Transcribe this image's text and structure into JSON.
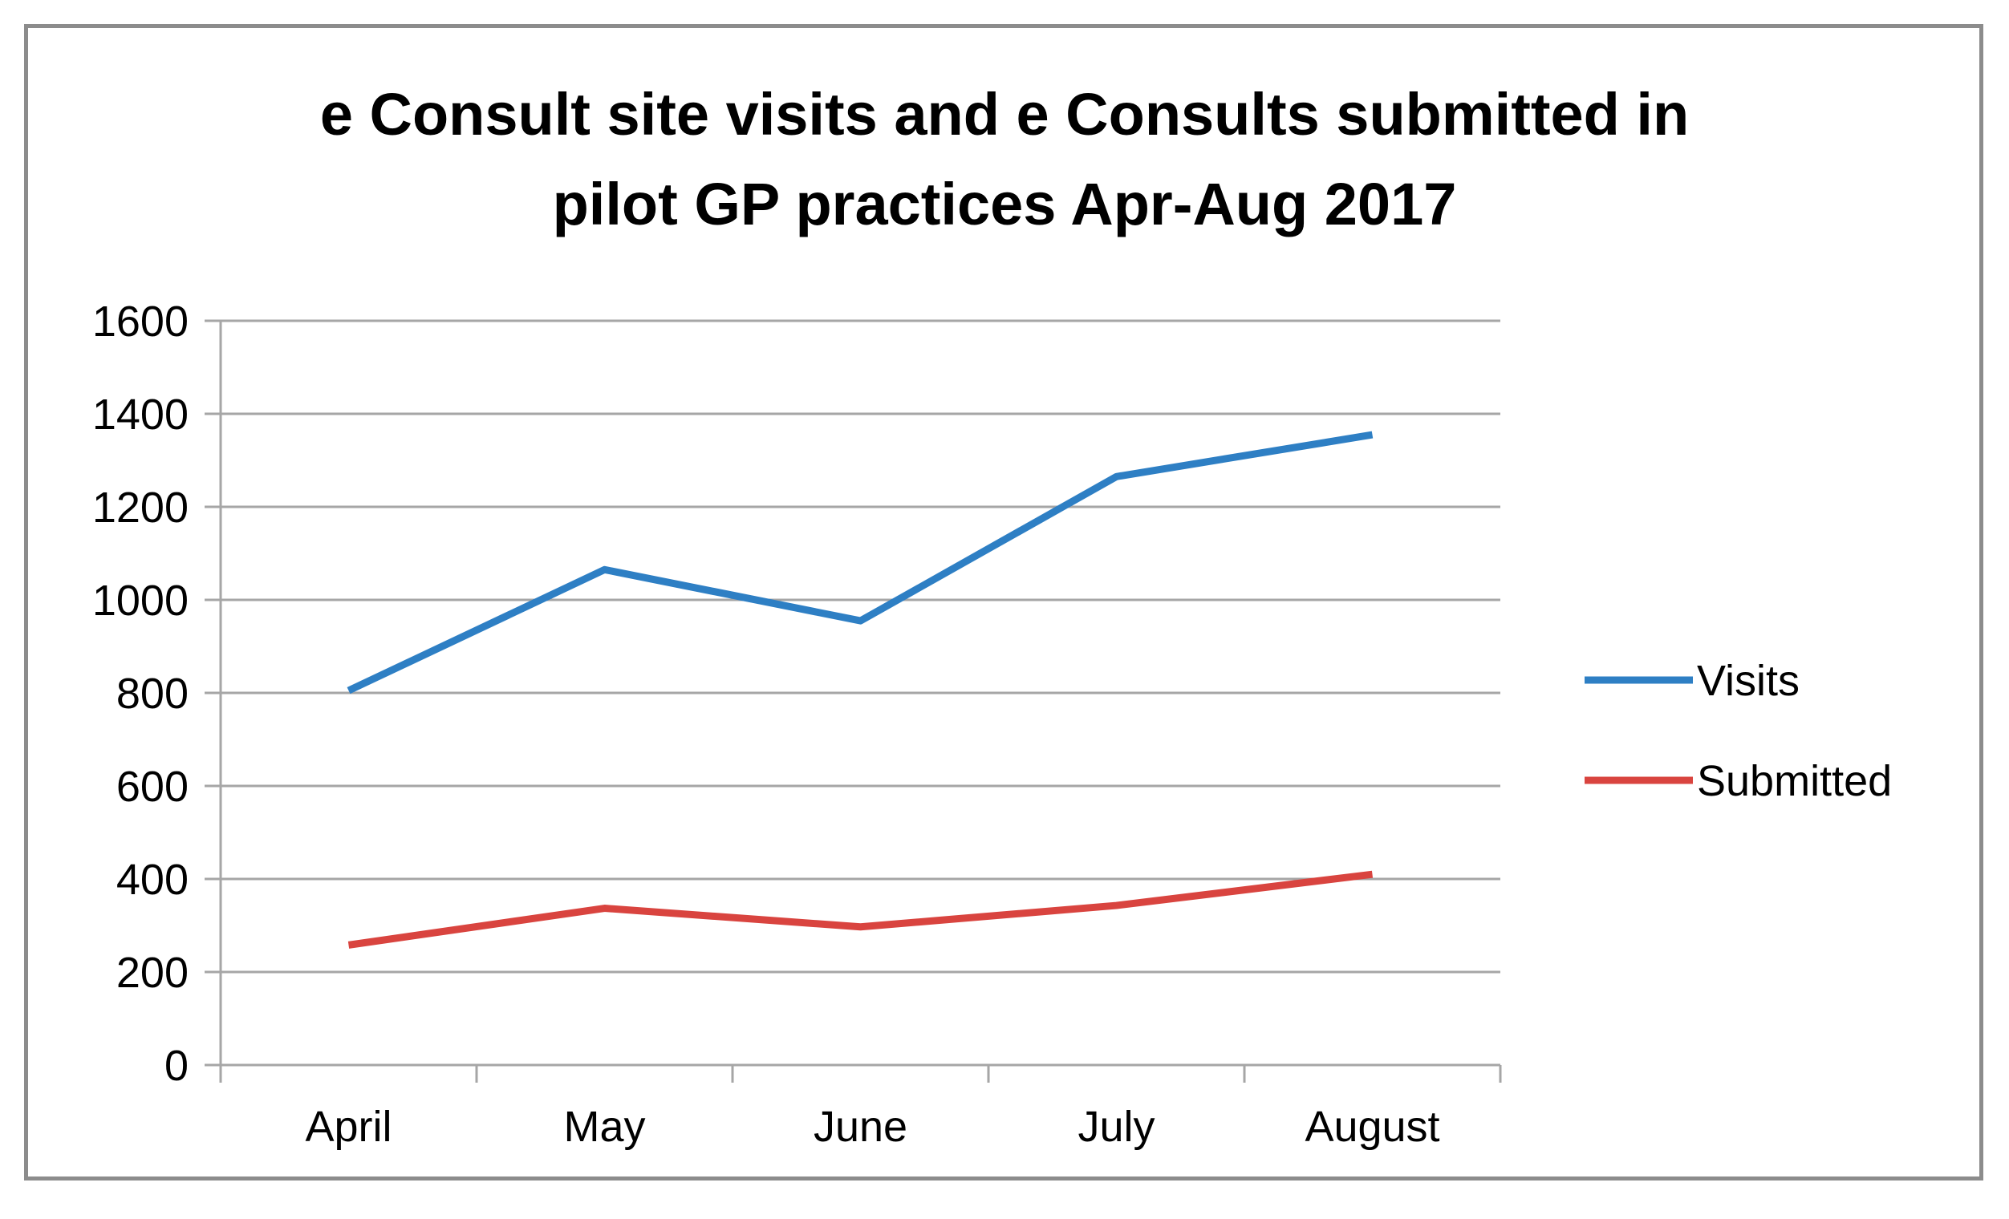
{
  "chart_data": {
    "type": "line",
    "title": "e Consult site visits and e Consults submitted  in pilot GP practices Apr-Aug 2017",
    "title_lines": [
      "e Consult site visits and e Consults submitted  in",
      "pilot GP practices Apr-Aug 2017"
    ],
    "categories": [
      "April",
      "May",
      "June",
      "July",
      "August"
    ],
    "series": [
      {
        "name": "Visits",
        "values": [
          805,
          1065,
          955,
          1265,
          1355
        ],
        "color": "#2e7fc4"
      },
      {
        "name": "Submitted",
        "values": [
          258,
          337,
          297,
          343,
          410
        ],
        "color": "#d9443f"
      }
    ],
    "ylim": [
      0,
      1600
    ],
    "yticks": [
      0,
      200,
      400,
      600,
      800,
      1000,
      1200,
      1400,
      1600
    ],
    "xlabel": "",
    "ylabel": "",
    "grid": true,
    "legend_position": "right",
    "gridline_color": "#a6a6a6",
    "axis_color": "#a6a6a6"
  }
}
